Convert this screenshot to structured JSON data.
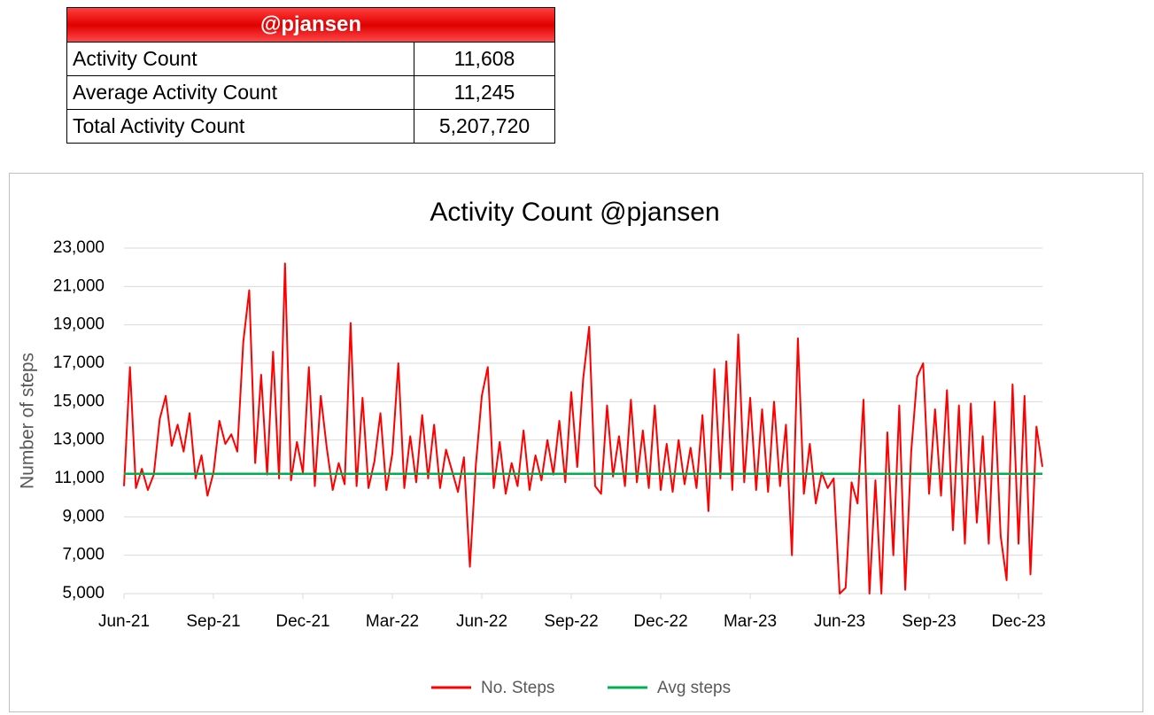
{
  "table": {
    "header": "@pjansen",
    "rows": [
      [
        "Activity Count",
        "11,608"
      ],
      [
        "Average Activity Count",
        "11,245"
      ],
      [
        "Total Activity Count",
        "5,207,720"
      ]
    ]
  },
  "chart_data": {
    "type": "line",
    "title": "Activity Count @pjansen",
    "y_label": "Number of steps",
    "categories": [
      "Jun-21",
      null,
      null,
      null,
      null,
      null,
      null,
      null,
      null,
      null,
      null,
      null,
      null,
      null,
      null,
      "Sep-21",
      null,
      null,
      null,
      null,
      null,
      null,
      null,
      null,
      null,
      null,
      null,
      null,
      null,
      null,
      "Dec-21",
      null,
      null,
      null,
      null,
      null,
      null,
      null,
      null,
      null,
      null,
      null,
      null,
      null,
      null,
      "Mar-22",
      null,
      null,
      null,
      null,
      null,
      null,
      null,
      null,
      null,
      null,
      null,
      null,
      null,
      null,
      "Jun-22",
      null,
      null,
      null,
      null,
      null,
      null,
      null,
      null,
      null,
      null,
      null,
      null,
      null,
      null,
      "Sep-22",
      null,
      null,
      null,
      null,
      null,
      null,
      null,
      null,
      null,
      null,
      null,
      null,
      null,
      null,
      "Dec-22",
      null,
      null,
      null,
      null,
      null,
      null,
      null,
      null,
      null,
      null,
      null,
      null,
      null,
      null,
      "Mar-23",
      null,
      null,
      null,
      null,
      null,
      null,
      null,
      null,
      null,
      null,
      null,
      null,
      null,
      null,
      "Jun-23",
      null,
      null,
      null,
      null,
      null,
      null,
      null,
      null,
      null,
      null,
      null,
      null,
      null,
      null,
      "Sep-23",
      null,
      null,
      null,
      null,
      null,
      null,
      null,
      null,
      null,
      null,
      null,
      null,
      null,
      null,
      "Dec-23",
      null,
      null,
      null,
      null
    ],
    "series": [
      {
        "name": "No. Steps",
        "color": "#ff0000",
        "values": [
          10600,
          16800,
          10500,
          11500,
          10400,
          11200,
          14100,
          15300,
          12700,
          13800,
          12400,
          14400,
          11000,
          12200,
          10100,
          11300,
          14000,
          12800,
          13300,
          12400,
          18100,
          20800,
          11800,
          16400,
          11200,
          17600,
          11000,
          22200,
          10900,
          12900,
          11300,
          16800,
          10600,
          15300,
          12600,
          10400,
          11800,
          10700,
          19100,
          10600,
          15200,
          10500,
          11900,
          14400,
          10400,
          12300,
          17000,
          10500,
          13200,
          10800,
          14300,
          11000,
          13800,
          10500,
          12500,
          11400,
          10300,
          12100,
          6400,
          11700,
          15300,
          16800,
          10500,
          12900,
          10200,
          11800,
          10600,
          13500,
          10400,
          12200,
          10900,
          13000,
          11200,
          14000,
          10800,
          15500,
          11600,
          16200,
          18900,
          10600,
          10200,
          14800,
          11100,
          13200,
          10600,
          15100,
          10800,
          13500,
          10500,
          14800,
          10400,
          12800,
          10300,
          13000,
          10700,
          12600,
          10500,
          14300,
          9300,
          16700,
          11000,
          17100,
          10400,
          18500,
          10800,
          15200,
          10400,
          14600,
          10300,
          15000,
          10600,
          13800,
          7000,
          18300,
          10200,
          12800,
          9700,
          11300,
          10500,
          11000,
          5000,
          5300,
          10800,
          9700,
          15100,
          5000,
          10900,
          5000,
          13400,
          7000,
          14800,
          5200,
          12400,
          16300,
          17000,
          10200,
          14600,
          10100,
          15600,
          8300,
          14800,
          7600,
          14900,
          8700,
          13200,
          7600,
          15000,
          8000,
          5700,
          15900,
          7600,
          15300,
          6000,
          13700,
          11608
        ]
      },
      {
        "name": "Avg steps",
        "color": "#00b050",
        "values": [
          11245,
          11245,
          11245,
          11245,
          11245,
          11245,
          11245,
          11245,
          11245,
          11245,
          11245,
          11245,
          11245,
          11245,
          11245,
          11245,
          11245,
          11245,
          11245,
          11245,
          11245,
          11245,
          11245,
          11245,
          11245,
          11245,
          11245,
          11245,
          11245,
          11245,
          11245,
          11245,
          11245,
          11245,
          11245,
          11245,
          11245,
          11245,
          11245,
          11245,
          11245,
          11245,
          11245,
          11245,
          11245,
          11245,
          11245,
          11245,
          11245,
          11245,
          11245,
          11245,
          11245,
          11245,
          11245,
          11245,
          11245,
          11245,
          11245,
          11245,
          11245,
          11245,
          11245,
          11245,
          11245,
          11245,
          11245,
          11245,
          11245,
          11245,
          11245,
          11245,
          11245,
          11245,
          11245,
          11245,
          11245,
          11245,
          11245,
          11245,
          11245,
          11245,
          11245,
          11245,
          11245,
          11245,
          11245,
          11245,
          11245,
          11245,
          11245,
          11245,
          11245,
          11245,
          11245,
          11245,
          11245,
          11245,
          11245,
          11245,
          11245,
          11245,
          11245,
          11245,
          11245,
          11245,
          11245,
          11245,
          11245,
          11245,
          11245,
          11245,
          11245,
          11245,
          11245,
          11245,
          11245,
          11245,
          11245,
          11245,
          11245,
          11245,
          11245,
          11245,
          11245,
          11245,
          11245,
          11245,
          11245,
          11245,
          11245,
          11245,
          11245,
          11245,
          11245,
          11245,
          11245,
          11245,
          11245,
          11245,
          11245,
          11245,
          11245,
          11245,
          11245,
          11245,
          11245,
          11245,
          11245,
          11245,
          11245,
          11245,
          11245,
          11245,
          11245
        ]
      }
    ],
    "ylim": [
      5000,
      23000
    ],
    "yticks": [
      {
        "value": 5000,
        "label": "5,000"
      },
      {
        "value": 7000,
        "label": "7,000"
      },
      {
        "value": 9000,
        "label": "9,000"
      },
      {
        "value": 11000,
        "label": "11,000"
      },
      {
        "value": 13000,
        "label": "13,000"
      },
      {
        "value": 15000,
        "label": "15,000"
      },
      {
        "value": 17000,
        "label": "17,000"
      },
      {
        "value": 19000,
        "label": "19,000"
      },
      {
        "value": 21000,
        "label": "21,000"
      },
      {
        "value": 23000,
        "label": "23,000"
      }
    ],
    "grid": true,
    "legend": "bottom"
  }
}
